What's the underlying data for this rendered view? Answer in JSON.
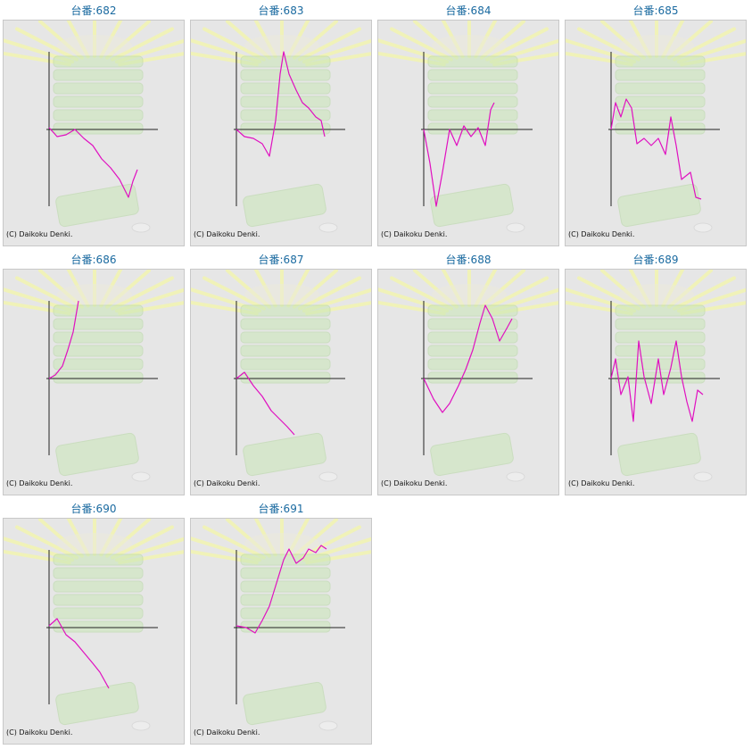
{
  "copyright": "(C) Daikoku Denki.",
  "colors": {
    "title": "#1a6aa0",
    "line": "#e010c0",
    "axis": "#222222",
    "panel_bg": "#e6e6e6"
  },
  "machines": [
    {
      "title": "台番:682"
    },
    {
      "title": "台番:683"
    },
    {
      "title": "台番:684"
    },
    {
      "title": "台番:685"
    },
    {
      "title": "台番:686"
    },
    {
      "title": "台番:687"
    },
    {
      "title": "台番:688"
    },
    {
      "title": "台番:689"
    },
    {
      "title": "台番:690"
    },
    {
      "title": "台番:691"
    }
  ]
}
